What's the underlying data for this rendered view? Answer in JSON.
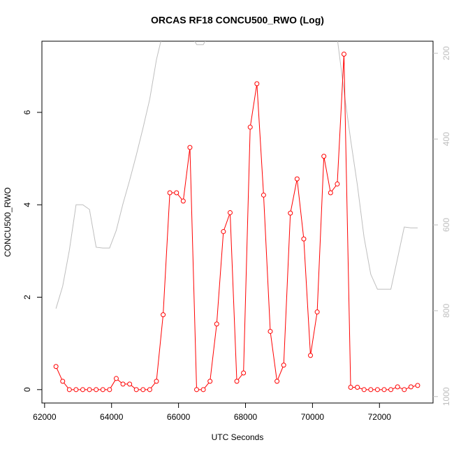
{
  "chart_data": {
    "type": "line",
    "title": "ORCAS RF18 CONCU500_RWO (Log)",
    "x_label": "UTC Seconds",
    "y_label": "CONCU500_RWO",
    "x": [
      62340,
      62540,
      62740,
      62940,
      63140,
      63340,
      63540,
      63740,
      63940,
      64140,
      64340,
      64540,
      64740,
      64940,
      65140,
      65340,
      65540,
      65740,
      65940,
      66140,
      66340,
      66540,
      66740,
      66940,
      67140,
      67340,
      67540,
      67740,
      67940,
      68140,
      68340,
      68540,
      68740,
      68940,
      69140,
      69340,
      69540,
      69740,
      69940,
      70140,
      70340,
      70540,
      70740,
      70940,
      71140,
      71340,
      71540,
      71740,
      71940,
      72140,
      72340,
      72540,
      72740,
      72940,
      73140
    ],
    "series": [
      {
        "color": "#ff0000",
        "markers": true,
        "values": [
          0.5,
          0.18,
          0,
          0,
          0,
          0,
          0,
          0,
          0,
          0.24,
          0.12,
          0.12,
          0,
          0,
          0,
          0.18,
          1.62,
          4.26,
          4.26,
          4.08,
          5.24,
          0,
          0,
          0.18,
          1.42,
          3.42,
          3.83,
          0.18,
          0.36,
          5.68,
          6.62,
          4.21,
          1.26,
          0.18,
          0.53,
          3.82,
          4.56,
          3.26,
          0.74,
          1.68,
          5.05,
          4.26,
          4.45,
          7.26,
          0.05,
          0.05,
          0,
          0,
          0,
          0,
          0,
          0.06,
          0,
          0.06,
          0.09
        ]
      },
      {
        "color": "#bebebe",
        "axis": "y2",
        "markers": false,
        "values": [
          795,
          743,
          659,
          553,
          553,
          564,
          652,
          654,
          654,
          613,
          551,
          496,
          437,
          374,
          307,
          215,
          150,
          150,
          150,
          150,
          150,
          180,
          180,
          150,
          150,
          150,
          150,
          150,
          150,
          150,
          150,
          150,
          150,
          150,
          150,
          150,
          150,
          150,
          150,
          150,
          150,
          150,
          165,
          288,
          402,
          507,
          629,
          715,
          750,
          750,
          750,
          678,
          605,
          607,
          607
        ]
      }
    ],
    "xlim": [
      61920,
      73600
    ],
    "xticks": [
      62000,
      64000,
      66000,
      68000,
      70000,
      72000
    ],
    "ylim": [
      -0.29,
      7.54
    ],
    "yticks": [
      0,
      2,
      4,
      6
    ],
    "y2lim": [
      1015,
      172
    ],
    "y2ticks": [
      200,
      400,
      600,
      800,
      1000
    ],
    "y2_color": "#bebebe"
  }
}
